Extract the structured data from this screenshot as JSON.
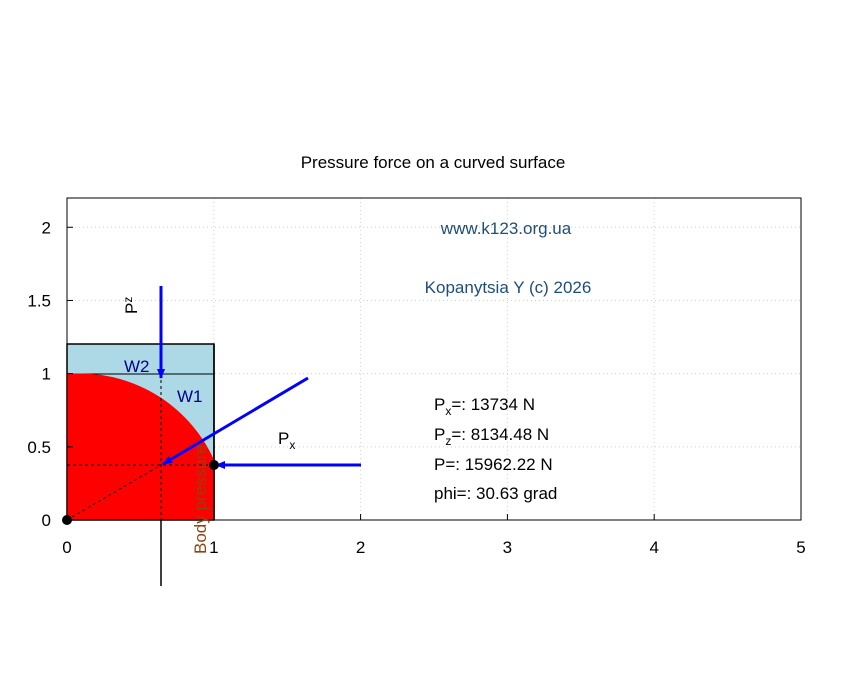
{
  "chart_data": {
    "type": "diagram",
    "title": "Pressure force on a curved surface",
    "xlim": [
      0,
      5
    ],
    "ylim": [
      0,
      2.2
    ],
    "xticks": [
      0,
      1,
      2,
      3,
      4,
      5
    ],
    "yticks": [
      0,
      0.5,
      1,
      1.5,
      2
    ],
    "grid": true,
    "website": "www.k123.org.ua",
    "author": "Kopanytsia Y (c)  2026",
    "labels": {
      "w1": "W1",
      "w2": "W2",
      "pz": {
        "symbol": "P",
        "subscript": "z"
      },
      "px": {
        "symbol": "P",
        "subscript": "x"
      },
      "body": "Body pressure"
    },
    "results": [
      {
        "symbol": "P",
        "subscript": "x",
        "text": "=: 13734 N"
      },
      {
        "symbol": "P",
        "subscript": "z",
        "text": "=: 8134.48 N"
      },
      {
        "text": "P=: 15962.22 N"
      },
      {
        "text": "phi=: 30.63 grad"
      }
    ]
  }
}
